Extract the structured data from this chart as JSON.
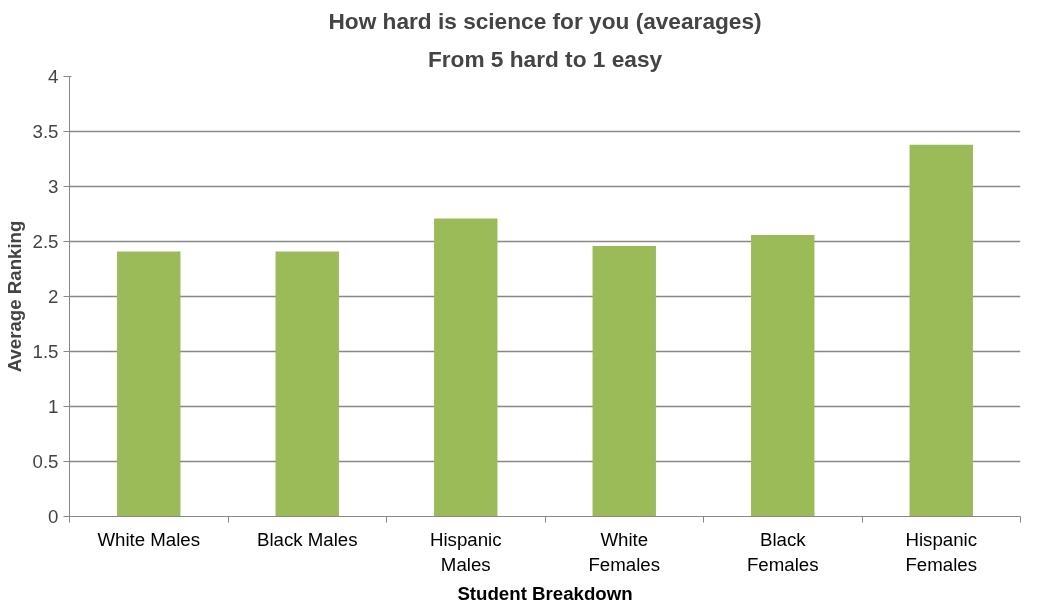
{
  "chart_data": {
    "type": "bar",
    "title": "How hard is science for you (avearages)",
    "subtitle": "From 5 hard to 1 easy",
    "xlabel": "Student Breakdown",
    "ylabel": "Average Ranking",
    "categories": [
      "White Males",
      "Black Males",
      "Hispanic Males",
      "White Females",
      "Black Females",
      "Hispanic Females"
    ],
    "values": [
      2.41,
      2.41,
      2.71,
      2.46,
      2.56,
      3.38
    ],
    "color": "#9bbb59",
    "ylim": [
      0,
      4
    ],
    "yticks": [
      {
        "value": 0,
        "label": "0"
      },
      0.5,
      1,
      1.5,
      2,
      2.5,
      3,
      3.5,
      {
        "value": 4,
        "label": "4"
      }
    ],
    "grid": "y"
  }
}
